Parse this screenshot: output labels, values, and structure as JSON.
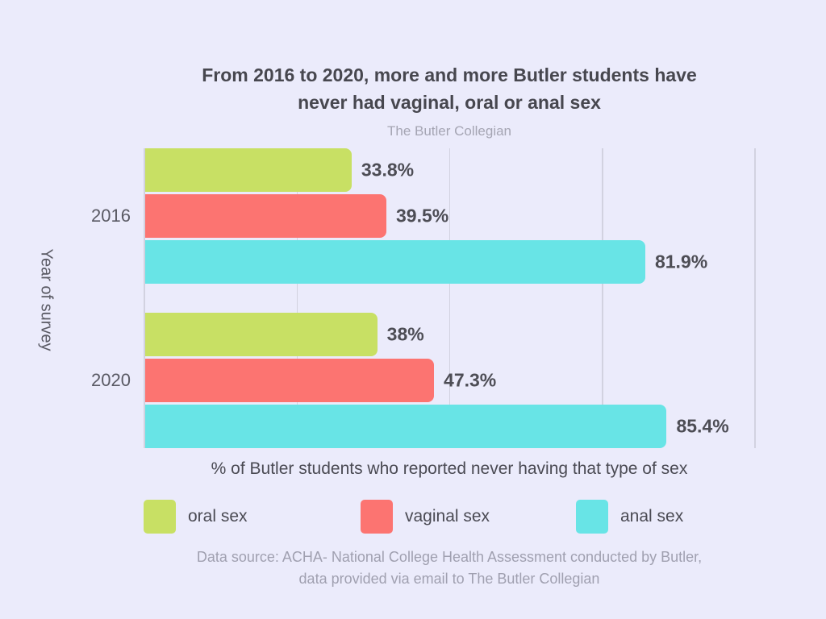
{
  "page": {
    "background": "#ebebfb"
  },
  "header": {
    "title_line1": "From 2016 to 2020, more and more Butler students have",
    "title_line2": "never had vaginal, oral or anal sex",
    "subtitle": "The Butler Collegian"
  },
  "chart_data": {
    "type": "bar",
    "orientation": "horizontal",
    "title": "From 2016 to 2020, more and more Butler students have never had vaginal, oral or anal sex",
    "subtitle": "The Butler Collegian",
    "ylabel": "Year of survey",
    "xlabel": "% of Butler students who reported never having that type of sex",
    "categories": [
      "2016",
      "2020"
    ],
    "series": [
      {
        "name": "oral sex",
        "color": "#c8e064",
        "values": [
          33.8,
          38.0
        ],
        "labels": [
          "33.8%",
          "38%"
        ]
      },
      {
        "name": "vaginal sex",
        "color": "#fc7471",
        "values": [
          39.5,
          47.3
        ],
        "labels": [
          "39.5%",
          "47.3%"
        ]
      },
      {
        "name": "anal sex",
        "color": "#68e4e6",
        "values": [
          81.9,
          85.4
        ],
        "labels": [
          "81.9%",
          "85.4%"
        ]
      }
    ],
    "xlim": [
      0,
      100
    ],
    "gridlines_pct": [
      0,
      25,
      50,
      75,
      100
    ],
    "grid": true,
    "legend_position": "bottom"
  },
  "footer": {
    "line1": "Data source: ACHA- National College Health Assessment conducted by Butler,",
    "line2": "data provided via email to The Butler Collegian"
  }
}
